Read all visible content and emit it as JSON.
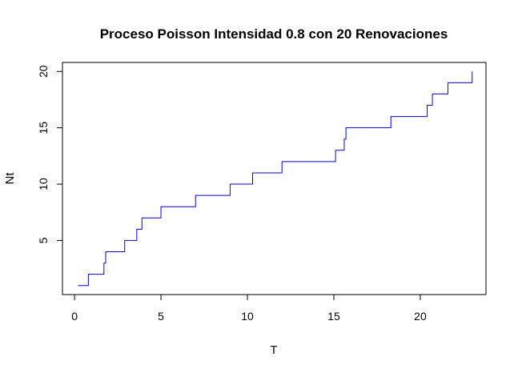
{
  "chart_data": {
    "type": "line",
    "step": "post",
    "title": "Proceso Poisson Intensidad 0.8 con 20 Renovaciones",
    "xlabel": "T",
    "ylabel": "Nt",
    "xlim": [
      -0.7,
      23.8
    ],
    "ylim": [
      0.2,
      20.8
    ],
    "xticks": [
      0,
      5,
      10,
      15,
      20
    ],
    "yticks": [
      5,
      10,
      15,
      20
    ],
    "grid": false,
    "legend": "none",
    "series_color": "#0000ff",
    "series": [
      {
        "x": [
          0.2,
          0.8,
          1.7,
          1.8,
          2.9,
          3.6,
          3.9,
          5.0,
          7.0,
          9.0,
          10.3,
          12.0,
          15.1,
          15.6,
          15.7,
          18.3,
          20.4,
          20.7,
          21.6,
          23.0
        ],
        "y": [
          1,
          2,
          3,
          4,
          5,
          6,
          7,
          8,
          9,
          10,
          11,
          12,
          13,
          14,
          15,
          16,
          17,
          18,
          19,
          20
        ]
      }
    ]
  }
}
